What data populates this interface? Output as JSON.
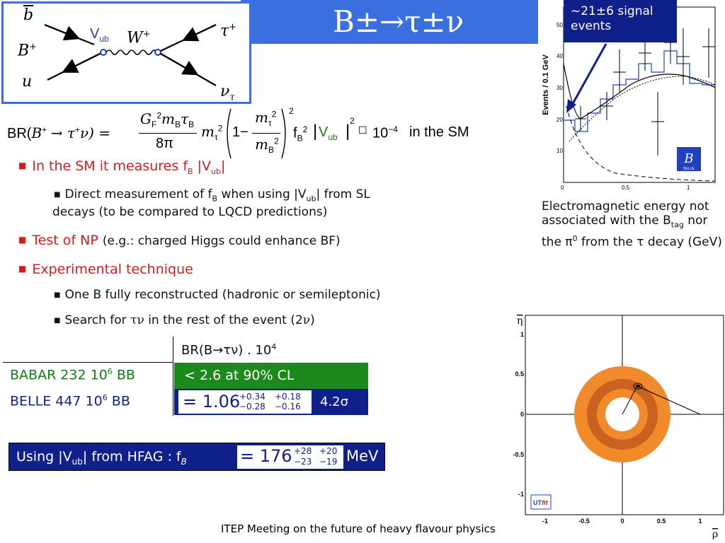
{
  "title": "B±→τ±ν",
  "feynman": {
    "b_bar": "b",
    "B_plus": "B",
    "B_plus_charge": "+",
    "u": "u",
    "V": "V",
    "V_sub": "ub",
    "W": "W",
    "W_charge": "+",
    "tau": "τ",
    "tau_charge": "+",
    "nu": "ν",
    "nu_sub": "τ"
  },
  "formula": {
    "lhs": "BR(",
    "lhs_B": "B",
    "lhs_arrow": "→ τ",
    "lhs_nu": "ν) =",
    "num": "G",
    "num_rest": "m",
    "den": "8π",
    "tail": "in the SM",
    "exp": "10",
    "exp_pow": "−4",
    "fB": "f",
    "Vub": "V",
    "Vub_sub": "ub"
  },
  "bullets": {
    "b1": "In the SM it measures f",
    "b1_sub": "B",
    "b1_rest": " |V",
    "b1_sub2": "ub",
    "b1_end": "|",
    "b1_1": "Direct measurement of f",
    "b1_1_sub": "B",
    "b1_1_rest": " when using |V",
    "b1_1_sub2": "ub",
    "b1_1_end": "| from SL",
    "b1_1_line2": "decays (to be compared to LQCD predictions)",
    "b2": "Test of NP",
    "b2_note": "(e.g.: charged Higgs could enhance BF)",
    "b3": "Experimental technique",
    "b3_1": "One B fully reconstructed (hadronic or semileptonic)",
    "b3_2_pre": "Search for ",
    "b3_2_tn": "τν",
    "b3_2_mid": " in the rest of the event (2",
    "b3_2_nu": "ν",
    "b3_2_end": ")"
  },
  "table": {
    "header": "BR(B→τν) . 10",
    "header_pow": "4",
    "babar_label": "BABAR 232 10",
    "babar_pow": "6",
    "babar_bb": " BB",
    "babar_value": "< 2.6 at 90% CL",
    "belle_label": "BELLE 447 10",
    "belle_pow": "6",
    "belle_bb": " BB",
    "belle_central": "1.06",
    "belle_err1_up": "+0.34",
    "belle_err1_dn": "−0.28",
    "belle_err2_up": "+0.18",
    "belle_err2_dn": "−0.16",
    "belle_sig": "4.2σ"
  },
  "fb_box": {
    "label": "Using |V",
    "label_sub": "ub",
    "label_rest": "| from HFAG : f",
    "label_fsub": "B",
    "central": "176",
    "err1_up": "+28",
    "err1_dn": "−23",
    "err2_up": "+20",
    "err2_dn": "−19",
    "unit": "MeV"
  },
  "callout": {
    "line1": "~21±6 signal",
    "line2": "events"
  },
  "histogram": {
    "ylabel": "Events / 0.1 GeV",
    "y_ticks": [
      "10",
      "20",
      "30",
      "40",
      "50"
    ],
    "x_ticks": [
      "0",
      "0.5",
      "1"
    ],
    "badge": "BELLE"
  },
  "description": {
    "line": "Electromagnetic energy not associated with the B",
    "sub": "tag",
    "rest": " nor the π",
    "sup": "0",
    "rest2": " from the τ decay (GeV)"
  },
  "utfit": {
    "eta_label": "η",
    "rho_label": "ρ",
    "y_ticks": [
      "1",
      "0.5",
      "0",
      "-0.5",
      "-1"
    ],
    "x_ticks": [
      "-1",
      "-0.5",
      "0",
      "0.5",
      "1"
    ],
    "logo_ut": "UT",
    "logo_fit": "fit"
  },
  "footer": "ITEP Meeting on the future of heavy flavour physics",
  "colors": {
    "title_bg": "#3b6fe0",
    "red_bullet": "#d41c1c",
    "babar_green": "#1b8a1b",
    "belle_navy": "#10208a",
    "ring_orange": "#f08a2a",
    "ring_dark": "#c8621e"
  }
}
